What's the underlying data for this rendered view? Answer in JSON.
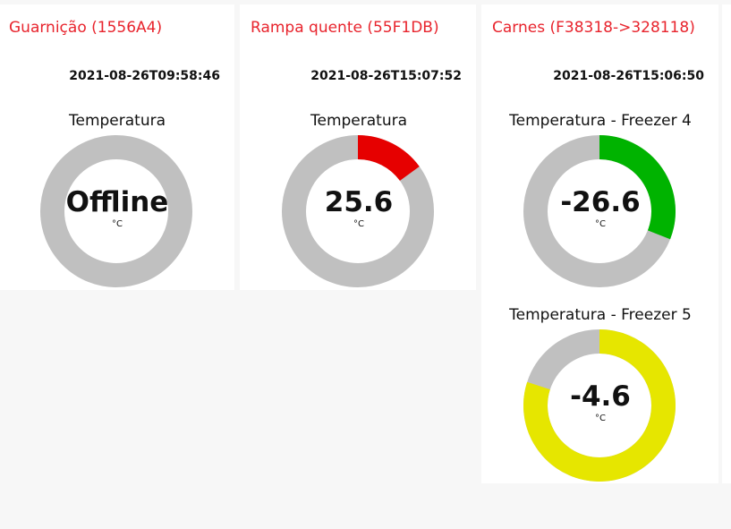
{
  "cards": [
    {
      "title": "Guarnição (1556A4)",
      "timestamp": "2021-08-26T09:58:46",
      "gauges": [
        {
          "label": "Temperatura",
          "value": "Offline",
          "unit": "°C",
          "fraction": 0,
          "color": "#c0c0c0"
        }
      ]
    },
    {
      "title": "Rampa quente (55F1DB)",
      "timestamp": "2021-08-26T15:07:52",
      "gauges": [
        {
          "label": "Temperatura",
          "value": "25.6",
          "unit": "°C",
          "fraction": 0.15,
          "color": "#e60000"
        }
      ]
    },
    {
      "title": "Carnes (F38318->328118)",
      "timestamp": "2021-08-26T15:06:50",
      "gauges": [
        {
          "label": "Temperatura - Freezer 4",
          "value": "-26.6",
          "unit": "°C",
          "fraction": 0.31,
          "color": "#00b300"
        },
        {
          "label": "Temperatura - Freezer 5",
          "value": "-4.6",
          "unit": "°C",
          "fraction": 0.8,
          "color": "#e6e600"
        }
      ]
    }
  ],
  "gauge_track_color": "#c0c0c0"
}
